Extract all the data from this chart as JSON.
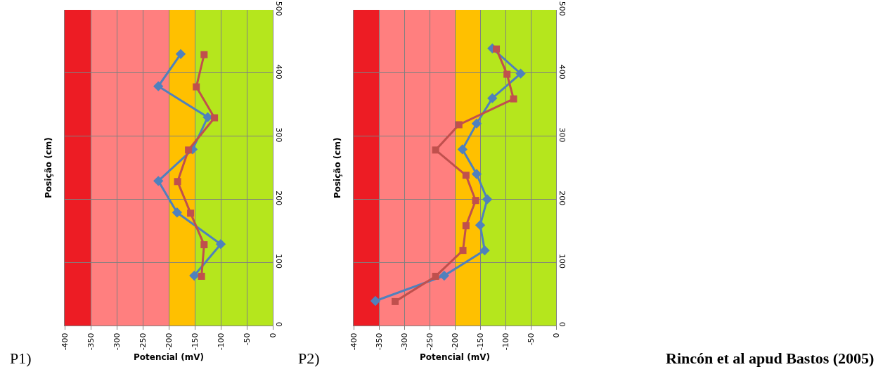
{
  "chart_data": [
    {
      "type": "line",
      "xlabel": "Potencial (mV)",
      "ylabel": "Posição (cm)",
      "annotations": [
        "P1)"
      ],
      "xlim": [
        -400,
        0
      ],
      "xticks": [
        -400,
        -350,
        -300,
        -250,
        -200,
        -150,
        -100,
        -50,
        0
      ],
      "ylim": [
        0,
        500
      ],
      "yticks": [
        0,
        100,
        200,
        300,
        400,
        500
      ],
      "grid": true,
      "line_style": "solid",
      "bands": [
        {
          "axis": "x",
          "from": -400,
          "to": -350,
          "color": "#ed1c24"
        },
        {
          "axis": "x",
          "from": -350,
          "to": -200,
          "color": "#ff7f7f"
        },
        {
          "axis": "x",
          "from": -200,
          "to": -150,
          "color": "#ffc000"
        },
        {
          "axis": "x",
          "from": -150,
          "to": 0,
          "color": "#b5e61d"
        }
      ],
      "series": [
        {
          "color": "#4f81bd",
          "marker": "diamond",
          "x": [
            -151,
            -100,
            -184,
            -220,
            -154,
            -125,
            -220,
            -177
          ],
          "values": [
            79,
            129,
            179,
            229,
            279,
            330,
            379,
            430
          ]
        },
        {
          "color": "#c0504d",
          "marker": "square",
          "x": [
            -137,
            -132,
            -158,
            -183,
            -162,
            -112,
            -147,
            -132
          ],
          "values": [
            78,
            128,
            178,
            228,
            278,
            329,
            378,
            429
          ]
        }
      ]
    },
    {
      "type": "line",
      "xlabel": "Potencial (mV)",
      "ylabel": "Posição (cm)",
      "annotations": [
        "P2)",
        "Rincón et al apud Bastos (2005)"
      ],
      "xlim": [
        -400,
        0
      ],
      "xticks": [
        -400,
        -350,
        -300,
        -250,
        -200,
        -150,
        -100,
        -50,
        0
      ],
      "ylim": [
        0,
        500
      ],
      "yticks": [
        0,
        100,
        200,
        300,
        400,
        500
      ],
      "grid": true,
      "line_style": "solid",
      "bands": [
        {
          "axis": "x",
          "from": -400,
          "to": -350,
          "color": "#ed1c24"
        },
        {
          "axis": "x",
          "from": -350,
          "to": -200,
          "color": "#ff7f7f"
        },
        {
          "axis": "x",
          "from": -200,
          "to": -150,
          "color": "#ffc000"
        },
        {
          "axis": "x",
          "from": -150,
          "to": 0,
          "color": "#b5e61d"
        }
      ],
      "series": [
        {
          "color": "#4f81bd",
          "marker": "diamond",
          "x": [
            -357,
            -221,
            -141,
            -150,
            -136,
            -157,
            -185,
            -157,
            -126,
            -70,
            -126
          ],
          "values": [
            39,
            79,
            119,
            159,
            200,
            240,
            279,
            320,
            360,
            399,
            439
          ]
        },
        {
          "color": "#c0504d",
          "marker": "square",
          "x": [
            -318,
            -238,
            -184,
            -178,
            -159,
            -178,
            -238,
            -192,
            -84,
            -97,
            -118
          ],
          "values": [
            38,
            78,
            119,
            158,
            198,
            238,
            278,
            318,
            359,
            398,
            438
          ]
        }
      ]
    }
  ]
}
